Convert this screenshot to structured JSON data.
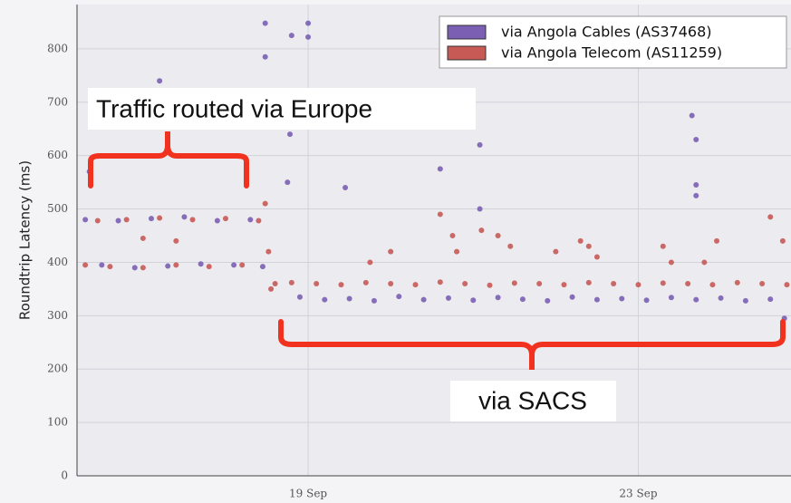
{
  "chart_data": {
    "type": "scatter",
    "y_label": "Roundtrip Latency (ms)",
    "xlim": [
      16.2,
      24.85
    ],
    "ylim": [
      0,
      883
    ],
    "xticks": [
      {
        "value": 19,
        "label": "19 Sep"
      },
      {
        "value": 23,
        "label": "23 Sep"
      }
    ],
    "yticks": [
      0,
      100,
      200,
      300,
      400,
      500,
      600,
      700,
      800
    ],
    "grid": true,
    "legend": "upper right",
    "annotations": [
      "Traffic routed via Europe",
      "via SACS"
    ],
    "series": [
      {
        "name": "via Angola Cables (AS37468)",
        "color": "#7b5fb3",
        "x": [
          16.3,
          16.5,
          16.7,
          16.9,
          17.1,
          17.3,
          17.5,
          17.7,
          17.9,
          18.1,
          18.3,
          18.45,
          18.48,
          18.48,
          18.8,
          19.0,
          19.0,
          18.75,
          18.78,
          19.45,
          20.6,
          21.08,
          21.08,
          23.65,
          23.7,
          23.7,
          23.7,
          24.77,
          16.35,
          17.2,
          18.9,
          19.2,
          19.5,
          19.8,
          20.1,
          20.4,
          20.7,
          21.0,
          21.3,
          21.6,
          21.9,
          22.2,
          22.5,
          22.8,
          23.1,
          23.4,
          23.7,
          24.0,
          24.3,
          24.6
        ],
        "values": [
          480,
          395,
          478,
          390,
          482,
          393,
          485,
          397,
          478,
          395,
          480,
          392,
          848,
          785,
          825,
          848,
          822,
          550,
          640,
          540,
          575,
          620,
          500,
          675,
          630,
          545,
          525,
          295,
          570,
          740,
          335,
          330,
          332,
          328,
          336,
          330,
          333,
          329,
          334,
          331,
          328,
          335,
          330,
          332,
          329,
          334,
          330,
          333,
          328,
          331
        ]
      },
      {
        "name": "via Angola Telecom (AS11259)",
        "color": "#c85a55",
        "x": [
          16.3,
          16.45,
          16.6,
          16.8,
          17.0,
          17.2,
          17.4,
          17.6,
          17.8,
          18.0,
          18.2,
          18.4,
          17.0,
          17.4,
          18.48,
          18.52,
          18.55,
          18.6,
          18.8,
          19.1,
          19.4,
          19.7,
          20.0,
          20.3,
          20.6,
          20.9,
          21.2,
          21.5,
          21.8,
          22.1,
          22.4,
          22.7,
          23.0,
          23.3,
          23.6,
          23.9,
          24.2,
          24.5,
          24.8,
          19.75,
          20.0,
          20.6,
          20.75,
          20.8,
          21.1,
          21.3,
          21.45,
          22.0,
          22.3,
          22.4,
          22.5,
          23.3,
          23.4,
          23.8,
          23.95,
          24.6,
          24.75
        ],
        "values": [
          395,
          478,
          392,
          480,
          390,
          483,
          395,
          480,
          392,
          482,
          395,
          478,
          445,
          440,
          510,
          420,
          350,
          360,
          362,
          360,
          358,
          362,
          360,
          358,
          363,
          360,
          357,
          361,
          360,
          358,
          362,
          360,
          358,
          361,
          360,
          358,
          362,
          360,
          358,
          400,
          420,
          490,
          450,
          420,
          460,
          450,
          430,
          420,
          440,
          430,
          410,
          430,
          400,
          400,
          440,
          485,
          440
        ]
      }
    ]
  }
}
